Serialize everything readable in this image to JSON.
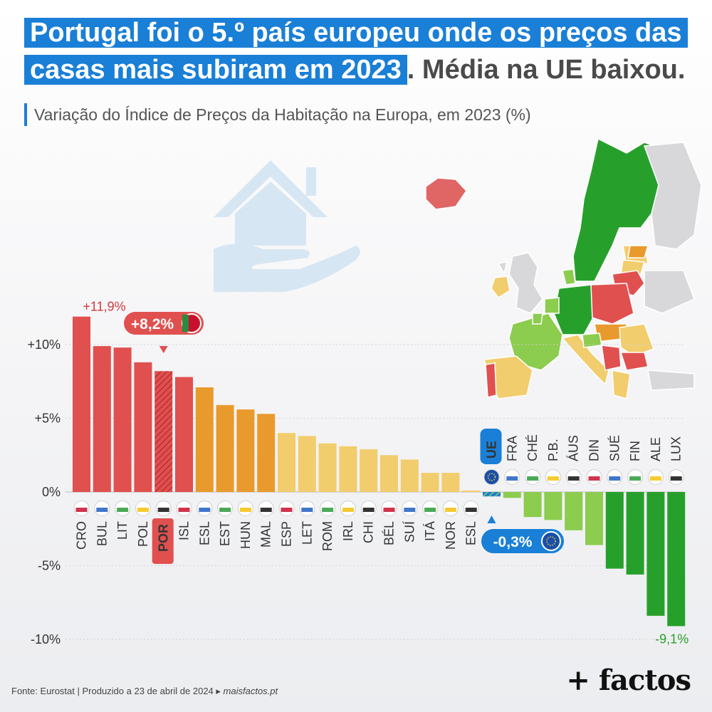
{
  "title": {
    "part1": "Portugal foi o 5.º país europeu onde os preços das",
    "part2": "casas mais subiram em 2023",
    "part3": ". Média na UE baixou."
  },
  "subtitle": "Variação do Índice de Preços da Habitação na Europa, em 2023 (%)",
  "footer": {
    "source": "Fonte: Eurostat | Produzido a 23 de abril de 2024 ▸ ",
    "site": "maisfactos.pt"
  },
  "logo": "+ factos",
  "colors": {
    "red": "#e0504f",
    "orange": "#e99a2d",
    "yellow": "#f2cd6d",
    "lightgreen": "#8ccc4e",
    "green": "#27a02b",
    "eu_blue": "#1a7fd6"
  },
  "chart_data": {
    "type": "bar",
    "title": "Variação do Índice de Preços da Habitação na Europa, em 2023 (%)",
    "ylim": [
      -10,
      12
    ],
    "yticks": [
      {
        "value": 10,
        "label": "+10%"
      },
      {
        "value": 5,
        "label": "+5%"
      },
      {
        "value": 0,
        "label": "0%"
      },
      {
        "value": -5,
        "label": "-5%"
      },
      {
        "value": -10,
        "label": "-10%"
      }
    ],
    "grid": true,
    "annotations": {
      "max_label": "+11,9%",
      "min_label": "-9,1%",
      "por_badge": "+8,2%",
      "eu_badge": "-0,3%",
      "eu_label": "UE"
    },
    "bars": [
      {
        "label": "CRO",
        "value": 11.9,
        "color": "red"
      },
      {
        "label": "BUL",
        "value": 9.9,
        "color": "red"
      },
      {
        "label": "LIT",
        "value": 9.8,
        "color": "red"
      },
      {
        "label": "POL",
        "value": 8.8,
        "color": "red"
      },
      {
        "label": "POR",
        "value": 8.2,
        "color": "red",
        "highlight": true
      },
      {
        "label": "ISL",
        "value": 7.8,
        "color": "red"
      },
      {
        "label": "ESL",
        "value": 7.1,
        "color": "orange"
      },
      {
        "label": "EST",
        "value": 5.9,
        "color": "orange"
      },
      {
        "label": "HUN",
        "value": 5.6,
        "color": "orange"
      },
      {
        "label": "MAL",
        "value": 5.3,
        "color": "orange"
      },
      {
        "label": "ESP",
        "value": 4.0,
        "color": "yellow"
      },
      {
        "label": "LET",
        "value": 3.8,
        "color": "yellow"
      },
      {
        "label": "ROM",
        "value": 3.3,
        "color": "yellow"
      },
      {
        "label": "IRL",
        "value": 3.1,
        "color": "yellow"
      },
      {
        "label": "CHI",
        "value": 2.9,
        "color": "yellow"
      },
      {
        "label": "BÉL",
        "value": 2.5,
        "color": "yellow"
      },
      {
        "label": "SUÍ",
        "value": 2.2,
        "color": "yellow"
      },
      {
        "label": "ITÁ",
        "value": 1.3,
        "color": "yellow"
      },
      {
        "label": "NOR",
        "value": 1.3,
        "color": "yellow"
      },
      {
        "label": "ESL",
        "value": 0.1,
        "color": "yellow"
      },
      {
        "label": "UE",
        "value": -0.3,
        "color": "eu",
        "highlight": true
      },
      {
        "label": "FRA",
        "value": -0.4,
        "color": "lightgreen"
      },
      {
        "label": "CHÉ",
        "value": -1.7,
        "color": "lightgreen"
      },
      {
        "label": "P.B.",
        "value": -1.9,
        "color": "lightgreen"
      },
      {
        "label": "ÁUS",
        "value": -2.6,
        "color": "lightgreen"
      },
      {
        "label": "DIN",
        "value": -3.6,
        "color": "lightgreen"
      },
      {
        "label": "SUÉ",
        "value": -5.2,
        "color": "green"
      },
      {
        "label": "FIN",
        "value": -5.6,
        "color": "green"
      },
      {
        "label": "ALE",
        "value": -8.4,
        "color": "green"
      },
      {
        "label": "LUX",
        "value": -9.1,
        "color": "green"
      }
    ]
  }
}
